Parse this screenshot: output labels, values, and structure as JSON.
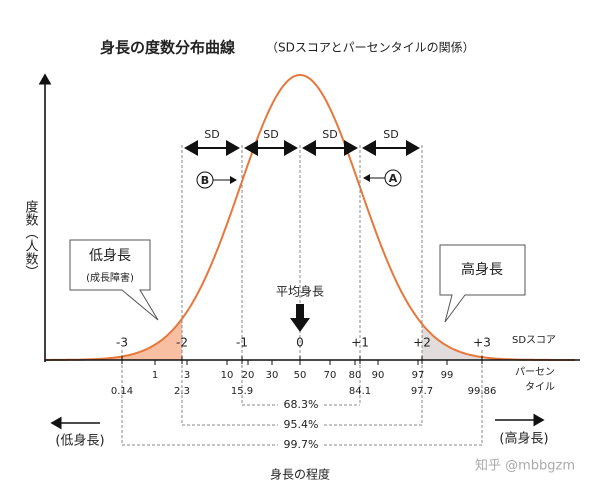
{
  "title": "身長の度数分布曲線",
  "subtitle": "（SDスコアとパーセンタイルの関係）",
  "y_label": "度数（人数）",
  "sd_labels": [
    "-3",
    "-2",
    "-1",
    "0",
    "+1",
    "+2",
    "+3"
  ],
  "sd_axis_label": "SDスコア",
  "percentile_labels_top": [
    "1",
    "3",
    "10",
    "20",
    "30",
    "50",
    "70",
    "80",
    "90",
    "97",
    "99"
  ],
  "percentile_labels_bottom": [
    "0.14",
    "2.3",
    "15.9",
    "84.1",
    "97.7",
    "99.86"
  ],
  "percentile_axis_label": [
    "パーセン",
    "タイル"
  ],
  "sd_brackets": [
    "SD",
    "SD",
    "SD",
    "SD"
  ],
  "markers": [
    "B",
    "A"
  ],
  "ranges": [
    "68.3%",
    "95.4%",
    "99.7%"
  ],
  "callouts": {
    "short": {
      "title": "低身長",
      "note": "(成長障害)"
    },
    "tall": {
      "title": "高身長"
    }
  },
  "mean_label": "平均身長",
  "left_label": "(低身長)",
  "right_label": "(高身長)",
  "x_label": "身長の程度",
  "watermark": "知乎 @mbbgzm"
}
